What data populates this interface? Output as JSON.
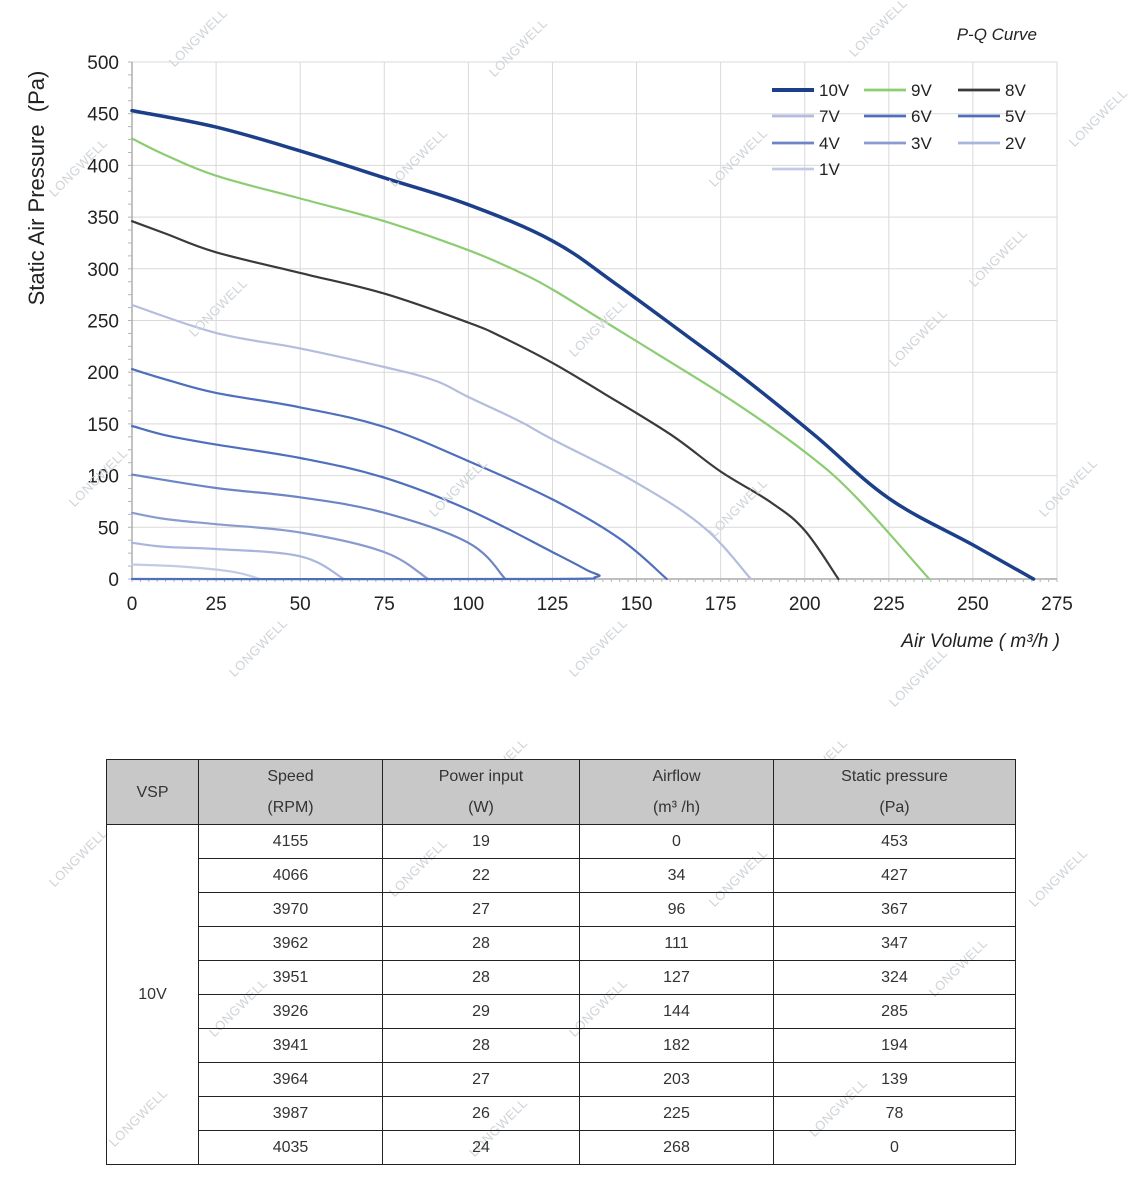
{
  "chart_data": {
    "type": "line",
    "title": "P-Q Curve",
    "xlabel": "Air Volume ( m³/h )",
    "ylabel": "Static Air Pressure  (Pa)",
    "xlim": [
      0,
      275
    ],
    "ylim": [
      0,
      500
    ],
    "xticks": [
      0,
      25,
      50,
      75,
      100,
      125,
      150,
      175,
      200,
      225,
      250,
      275
    ],
    "yticks": [
      0,
      50,
      100,
      150,
      200,
      250,
      300,
      350,
      400,
      450,
      500
    ],
    "grid": true,
    "legend_position": "top-right",
    "series": [
      {
        "name": "10V",
        "color": "#1c3f8a",
        "width": 3.5,
        "points": [
          [
            0,
            453
          ],
          [
            25,
            437
          ],
          [
            50,
            414
          ],
          [
            75,
            388
          ],
          [
            100,
            362
          ],
          [
            125,
            327
          ],
          [
            144,
            285
          ],
          [
            165,
            235
          ],
          [
            182,
            194
          ],
          [
            203,
            139
          ],
          [
            225,
            78
          ],
          [
            250,
            33
          ],
          [
            268,
            0
          ]
        ]
      },
      {
        "name": "9V",
        "color": "#8ccc72",
        "width": 2.2,
        "points": [
          [
            0,
            426
          ],
          [
            10,
            410
          ],
          [
            25,
            390
          ],
          [
            50,
            368
          ],
          [
            75,
            346
          ],
          [
            100,
            318
          ],
          [
            115,
            297
          ],
          [
            125,
            280
          ],
          [
            140,
            250
          ],
          [
            160,
            210
          ],
          [
            180,
            169
          ],
          [
            200,
            123
          ],
          [
            215,
            80
          ],
          [
            237,
            0
          ]
        ]
      },
      {
        "name": "8V",
        "color": "#3a3a3a",
        "width": 2.2,
        "points": [
          [
            0,
            346
          ],
          [
            10,
            334
          ],
          [
            25,
            316
          ],
          [
            50,
            296
          ],
          [
            75,
            276
          ],
          [
            100,
            248
          ],
          [
            110,
            234
          ],
          [
            125,
            209
          ],
          [
            140,
            180
          ],
          [
            160,
            140
          ],
          [
            175,
            104
          ],
          [
            190,
            74
          ],
          [
            200,
            47
          ],
          [
            210,
            0
          ]
        ]
      },
      {
        "name": "7V",
        "color": "#b3bddd",
        "width": 2.2,
        "points": [
          [
            0,
            265
          ],
          [
            25,
            238
          ],
          [
            50,
            223
          ],
          [
            75,
            205
          ],
          [
            90,
            192
          ],
          [
            100,
            176
          ],
          [
            115,
            153
          ],
          [
            125,
            135
          ],
          [
            150,
            93
          ],
          [
            170,
            50
          ],
          [
            184,
            0
          ]
        ]
      },
      {
        "name": "6V",
        "color": "#4f6fbd",
        "width": 2.2,
        "points": [
          [
            0,
            203
          ],
          [
            10,
            193
          ],
          [
            25,
            180
          ],
          [
            50,
            166
          ],
          [
            75,
            147
          ],
          [
            100,
            114
          ],
          [
            125,
            77
          ],
          [
            145,
            39
          ],
          [
            159,
            0
          ]
        ]
      },
      {
        "name": "5V",
        "color": "#4f6fbd",
        "width": 2.2,
        "points": [
          [
            0,
            148
          ],
          [
            10,
            139
          ],
          [
            25,
            130
          ],
          [
            50,
            117
          ],
          [
            75,
            98
          ],
          [
            100,
            67
          ],
          [
            125,
            26
          ],
          [
            135,
            9
          ],
          [
            138,
            2
          ],
          [
            120,
            0
          ],
          [
            0,
            0
          ]
        ]
      },
      {
        "name": "4V",
        "color": "#6d85c7",
        "width": 2.2,
        "points": [
          [
            0,
            101
          ],
          [
            25,
            88
          ],
          [
            50,
            79
          ],
          [
            75,
            64
          ],
          [
            100,
            35
          ],
          [
            111,
            0
          ]
        ]
      },
      {
        "name": "3V",
        "color": "#8a9bd0",
        "width": 2.2,
        "points": [
          [
            0,
            64
          ],
          [
            10,
            58
          ],
          [
            25,
            53
          ],
          [
            50,
            45
          ],
          [
            75,
            26
          ],
          [
            88,
            0
          ]
        ]
      },
      {
        "name": "2V",
        "color": "#a9b5dc",
        "width": 2.2,
        "points": [
          [
            0,
            35
          ],
          [
            10,
            31
          ],
          [
            25,
            29
          ],
          [
            50,
            22
          ],
          [
            63,
            0
          ]
        ]
      },
      {
        "name": "1V",
        "color": "#c2cbe6",
        "width": 2.2,
        "points": [
          [
            0,
            14
          ],
          [
            15,
            12
          ],
          [
            30,
            7
          ],
          [
            38,
            0
          ]
        ]
      }
    ]
  },
  "watermark": "LONGWELL",
  "table": {
    "headers": [
      {
        "line1": "VSP",
        "line2": ""
      },
      {
        "line1": "Speed",
        "line2": "(RPM)"
      },
      {
        "line1": "Power input",
        "line2": "(W)"
      },
      {
        "line1": "Airflow",
        "line2": "(m³ /h)"
      },
      {
        "line1": "Static pressure",
        "line2": "(Pa)"
      }
    ],
    "vsp": "10V",
    "rows": [
      [
        "4155",
        "19",
        "0",
        "453"
      ],
      [
        "4066",
        "22",
        "34",
        "427"
      ],
      [
        "3970",
        "27",
        "96",
        "367"
      ],
      [
        "3962",
        "28",
        "111",
        "347"
      ],
      [
        "3951",
        "28",
        "127",
        "324"
      ],
      [
        "3926",
        "29",
        "144",
        "285"
      ],
      [
        "3941",
        "28",
        "182",
        "194"
      ],
      [
        "3964",
        "27",
        "203",
        "139"
      ],
      [
        "3987",
        "26",
        "225",
        "78"
      ],
      [
        "4035",
        "24",
        "268",
        "0"
      ]
    ]
  }
}
